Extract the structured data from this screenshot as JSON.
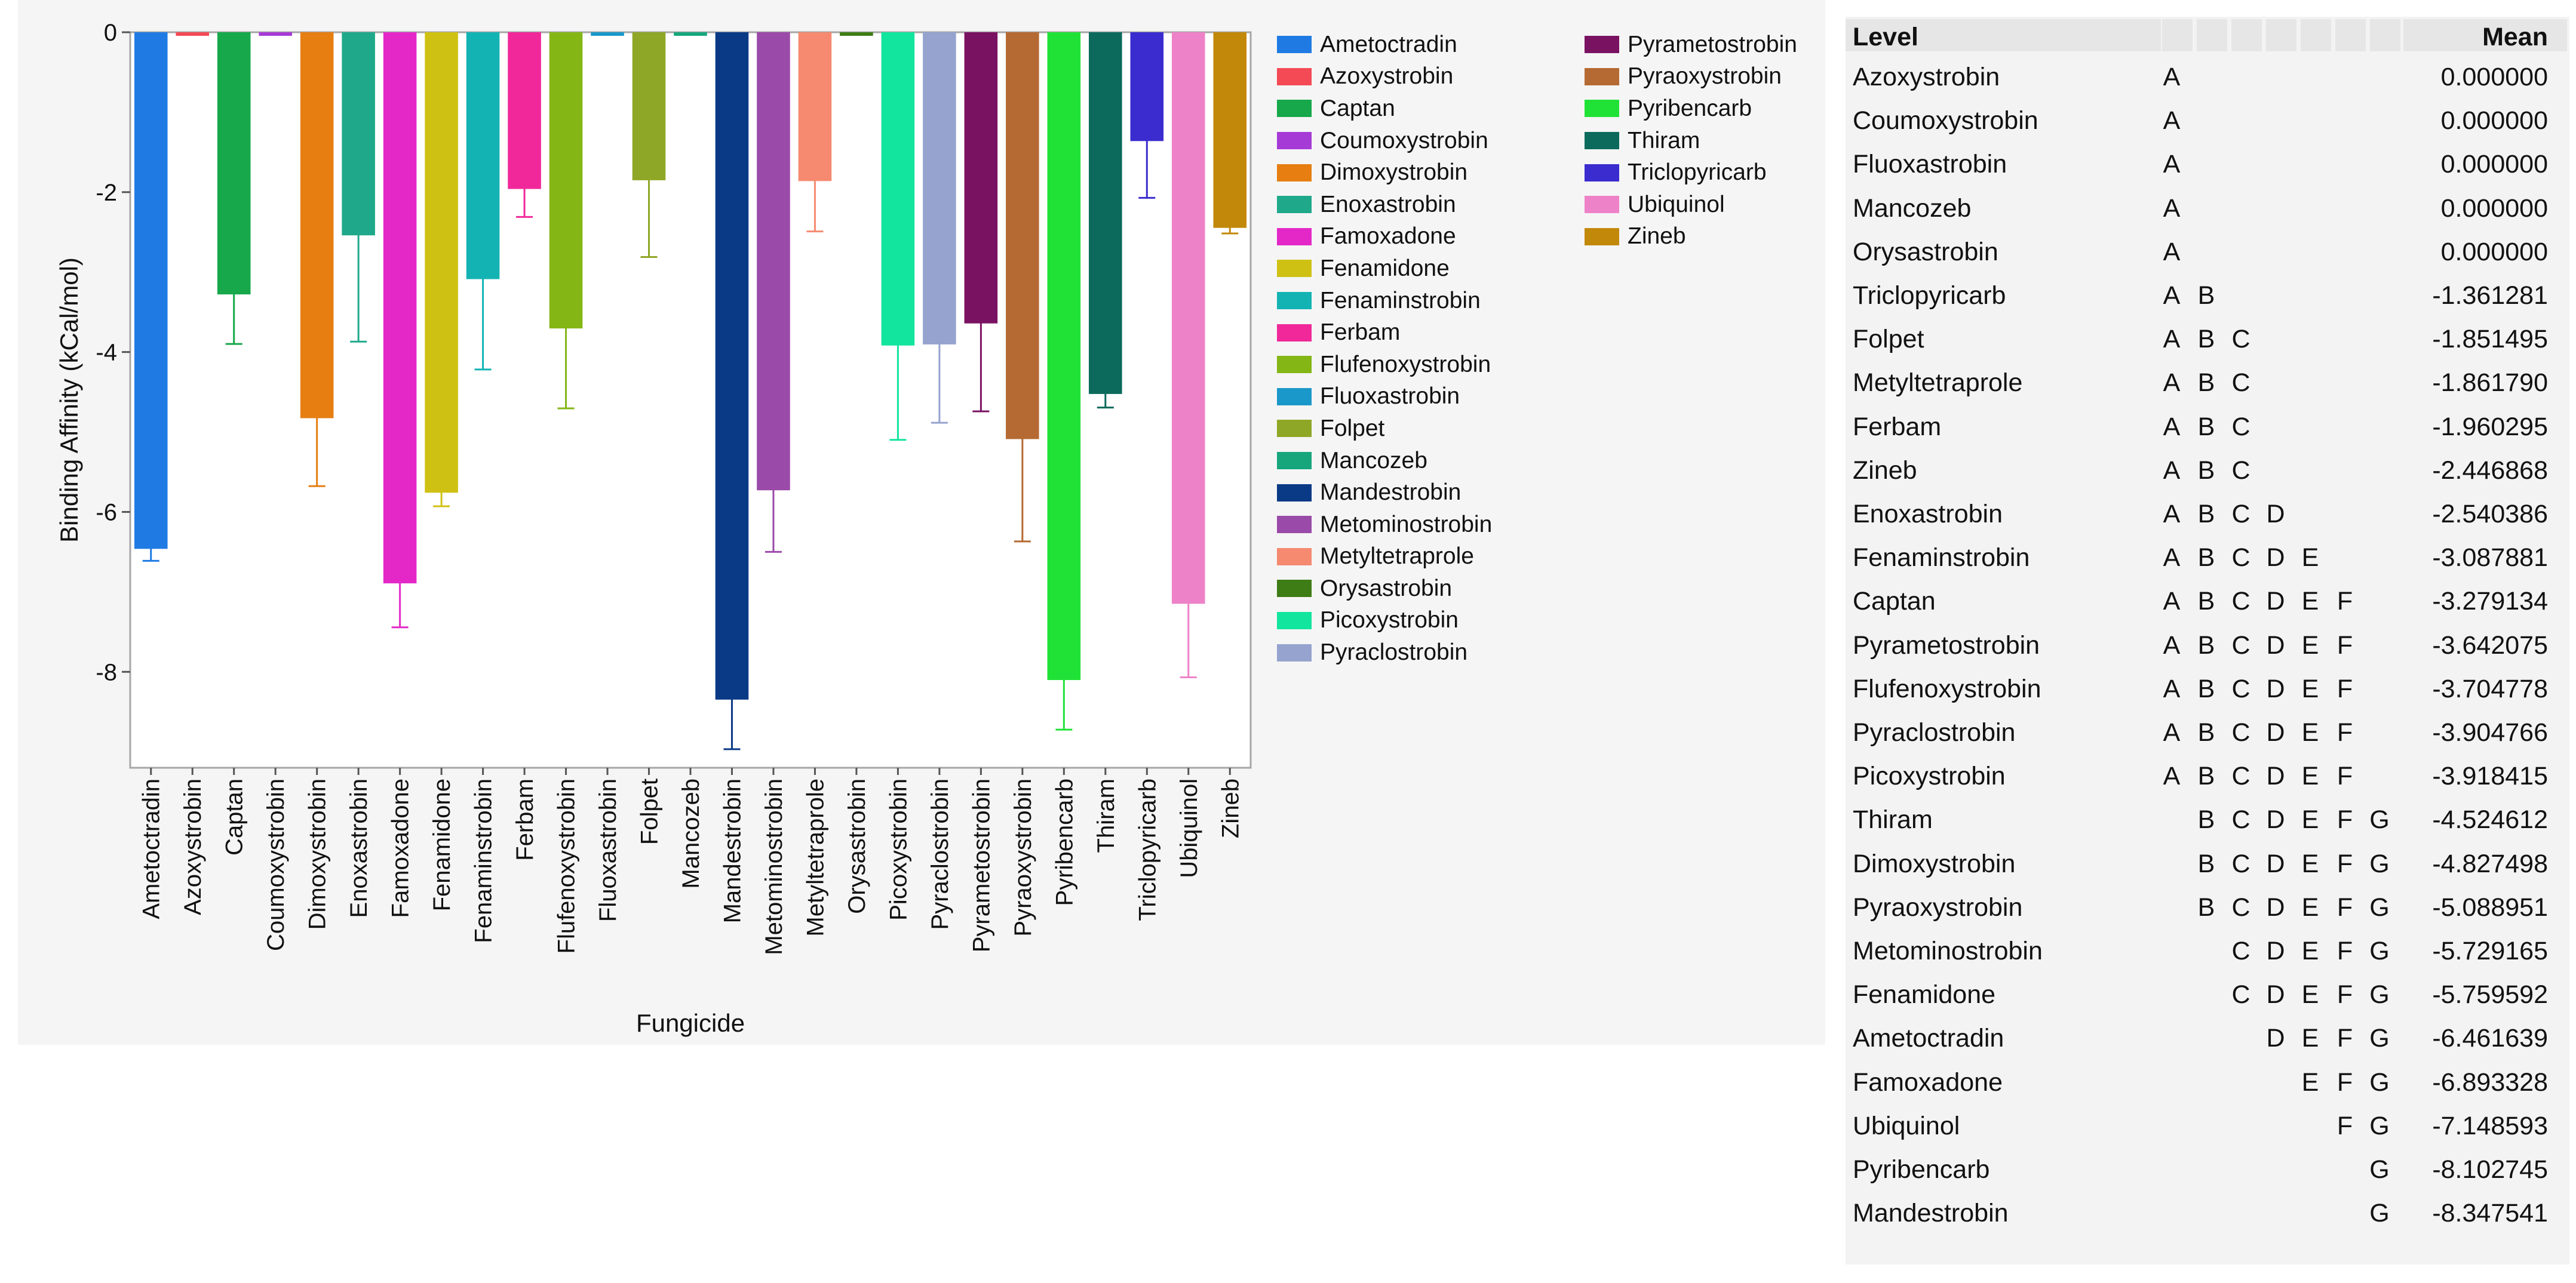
{
  "chart_data": {
    "type": "bar",
    "xlabel": "Fungicide",
    "ylabel": "Binding Affinity (kCal/mol)",
    "ylim": [
      -9.2,
      0
    ],
    "yticks": [
      0,
      -2,
      -4,
      -6,
      -8
    ],
    "ytick_labels": [
      "0",
      "-2",
      "-4",
      "-6",
      "-8"
    ],
    "categories": [
      "Ametoctradin",
      "Azoxystrobin",
      "Captan",
      "Coumoxystrobin",
      "Dimoxystrobin",
      "Enoxastrobin",
      "Famoxadone",
      "Fenamidone",
      "Fenaminstrobin",
      "Ferbam",
      "Flufenoxystrobin",
      "Fluoxastrobin",
      "Folpet",
      "Mancozeb",
      "Mandestrobin",
      "Metominostrobin",
      "Metyltetraprole",
      "Orysastrobin",
      "Picoxystrobin",
      "Pyraclostrobin",
      "Pyrametostrobin",
      "Pyraoxystrobin",
      "Pyribencarb",
      "Thiram",
      "Triclopyricarb",
      "Ubiquinol",
      "Zineb"
    ],
    "values": [
      -6.461639,
      0.0,
      -3.279134,
      0.0,
      -4.827498,
      -2.540386,
      -6.893328,
      -5.759592,
      -3.087881,
      -1.960295,
      -3.704778,
      0.0,
      -1.851495,
      0.0,
      -8.347541,
      -5.729165,
      -1.86179,
      0.0,
      -3.918415,
      -3.904766,
      -3.642075,
      -5.088951,
      -8.102745,
      -4.524612,
      -1.361281,
      -7.148593,
      -2.446868
    ],
    "errors": [
      0.15,
      0.0,
      0.62,
      0.0,
      0.85,
      1.33,
      0.55,
      0.17,
      1.13,
      0.35,
      1.0,
      0.0,
      0.96,
      0.0,
      0.62,
      0.77,
      0.63,
      0.0,
      1.18,
      0.98,
      1.1,
      1.28,
      0.62,
      0.17,
      0.71,
      0.92,
      0.07
    ],
    "colors": [
      "#1f7be3",
      "#f34a55",
      "#16a84a",
      "#a63ad6",
      "#e67e12",
      "#1fa98a",
      "#e428c8",
      "#cfc114",
      "#14b3b3",
      "#f0289a",
      "#84b616",
      "#1a98c9",
      "#8fa726",
      "#17a67c",
      "#0a3a86",
      "#9a4aa8",
      "#f58a70",
      "#3e7d16",
      "#12e59e",
      "#96a3cf",
      "#7a1262",
      "#b56a33",
      "#20e236",
      "#0b6a5c",
      "#3a2ccf",
      "#ee82c8",
      "#c2880a"
    ]
  },
  "legend": {
    "column1": [
      "Ametoctradin",
      "Azoxystrobin",
      "Captan",
      "Coumoxystrobin",
      "Dimoxystrobin",
      "Enoxastrobin",
      "Famoxadone",
      "Fenamidone",
      "Fenaminstrobin",
      "Ferbam",
      "Flufenoxystrobin",
      "Fluoxastrobin",
      "Folpet",
      "Mancozeb",
      "Mandestrobin",
      "Metominostrobin",
      "Metyltetraprole",
      "Orysastrobin",
      "Picoxystrobin",
      "Pyraclostrobin"
    ],
    "column2": [
      "Pyrametostrobin",
      "Pyraoxystrobin",
      "Pyribencarb",
      "Thiram",
      "Triclopyricarb",
      "Ubiquinol",
      "Zineb"
    ]
  },
  "table": {
    "level_header": "Level",
    "mean_header": "Mean",
    "rows": [
      {
        "level": "Azoxystrobin",
        "letters": [
          "A",
          "",
          "",
          "",
          "",
          "",
          ""
        ],
        "mean": "0.000000"
      },
      {
        "level": "Coumoxystrobin",
        "letters": [
          "A",
          "",
          "",
          "",
          "",
          "",
          ""
        ],
        "mean": "0.000000"
      },
      {
        "level": "Fluoxastrobin",
        "letters": [
          "A",
          "",
          "",
          "",
          "",
          "",
          ""
        ],
        "mean": "0.000000"
      },
      {
        "level": "Mancozeb",
        "letters": [
          "A",
          "",
          "",
          "",
          "",
          "",
          ""
        ],
        "mean": "0.000000"
      },
      {
        "level": "Orysastrobin",
        "letters": [
          "A",
          "",
          "",
          "",
          "",
          "",
          ""
        ],
        "mean": "0.000000"
      },
      {
        "level": "Triclopyricarb",
        "letters": [
          "A",
          "B",
          "",
          "",
          "",
          "",
          ""
        ],
        "mean": "-1.361281"
      },
      {
        "level": "Folpet",
        "letters": [
          "A",
          "B",
          "C",
          "",
          "",
          "",
          ""
        ],
        "mean": "-1.851495"
      },
      {
        "level": "Metyltetraprole",
        "letters": [
          "A",
          "B",
          "C",
          "",
          "",
          "",
          ""
        ],
        "mean": "-1.861790"
      },
      {
        "level": "Ferbam",
        "letters": [
          "A",
          "B",
          "C",
          "",
          "",
          "",
          ""
        ],
        "mean": "-1.960295"
      },
      {
        "level": "Zineb",
        "letters": [
          "A",
          "B",
          "C",
          "",
          "",
          "",
          ""
        ],
        "mean": "-2.446868"
      },
      {
        "level": "Enoxastrobin",
        "letters": [
          "A",
          "B",
          "C",
          "D",
          "",
          "",
          ""
        ],
        "mean": "-2.540386"
      },
      {
        "level": "Fenaminstrobin",
        "letters": [
          "A",
          "B",
          "C",
          "D",
          "E",
          "",
          ""
        ],
        "mean": "-3.087881"
      },
      {
        "level": "Captan",
        "letters": [
          "A",
          "B",
          "C",
          "D",
          "E",
          "F",
          ""
        ],
        "mean": "-3.279134"
      },
      {
        "level": "Pyrametostrobin",
        "letters": [
          "A",
          "B",
          "C",
          "D",
          "E",
          "F",
          ""
        ],
        "mean": "-3.642075"
      },
      {
        "level": "Flufenoxystrobin",
        "letters": [
          "A",
          "B",
          "C",
          "D",
          "E",
          "F",
          ""
        ],
        "mean": "-3.704778"
      },
      {
        "level": "Pyraclostrobin",
        "letters": [
          "A",
          "B",
          "C",
          "D",
          "E",
          "F",
          ""
        ],
        "mean": "-3.904766"
      },
      {
        "level": "Picoxystrobin",
        "letters": [
          "A",
          "B",
          "C",
          "D",
          "E",
          "F",
          ""
        ],
        "mean": "-3.918415"
      },
      {
        "level": "Thiram",
        "letters": [
          "",
          "B",
          "C",
          "D",
          "E",
          "F",
          "G"
        ],
        "mean": "-4.524612"
      },
      {
        "level": "Dimoxystrobin",
        "letters": [
          "",
          "B",
          "C",
          "D",
          "E",
          "F",
          "G"
        ],
        "mean": "-4.827498"
      },
      {
        "level": "Pyraoxystrobin",
        "letters": [
          "",
          "B",
          "C",
          "D",
          "E",
          "F",
          "G"
        ],
        "mean": "-5.088951"
      },
      {
        "level": "Metominostrobin",
        "letters": [
          "",
          "",
          "C",
          "D",
          "E",
          "F",
          "G"
        ],
        "mean": "-5.729165"
      },
      {
        "level": "Fenamidone",
        "letters": [
          "",
          "",
          "C",
          "D",
          "E",
          "F",
          "G"
        ],
        "mean": "-5.759592"
      },
      {
        "level": "Ametoctradin",
        "letters": [
          "",
          "",
          "",
          "D",
          "E",
          "F",
          "G"
        ],
        "mean": "-6.461639"
      },
      {
        "level": "Famoxadone",
        "letters": [
          "",
          "",
          "",
          "",
          "E",
          "F",
          "G"
        ],
        "mean": "-6.893328"
      },
      {
        "level": "Ubiquinol",
        "letters": [
          "",
          "",
          "",
          "",
          "",
          "F",
          "G"
        ],
        "mean": "-7.148593"
      },
      {
        "level": "Pyribencarb",
        "letters": [
          "",
          "",
          "",
          "",
          "",
          "",
          "G"
        ],
        "mean": "-8.102745"
      },
      {
        "level": "Mandestrobin",
        "letters": [
          "",
          "",
          "",
          "",
          "",
          "",
          "G"
        ],
        "mean": "-8.347541"
      }
    ]
  }
}
